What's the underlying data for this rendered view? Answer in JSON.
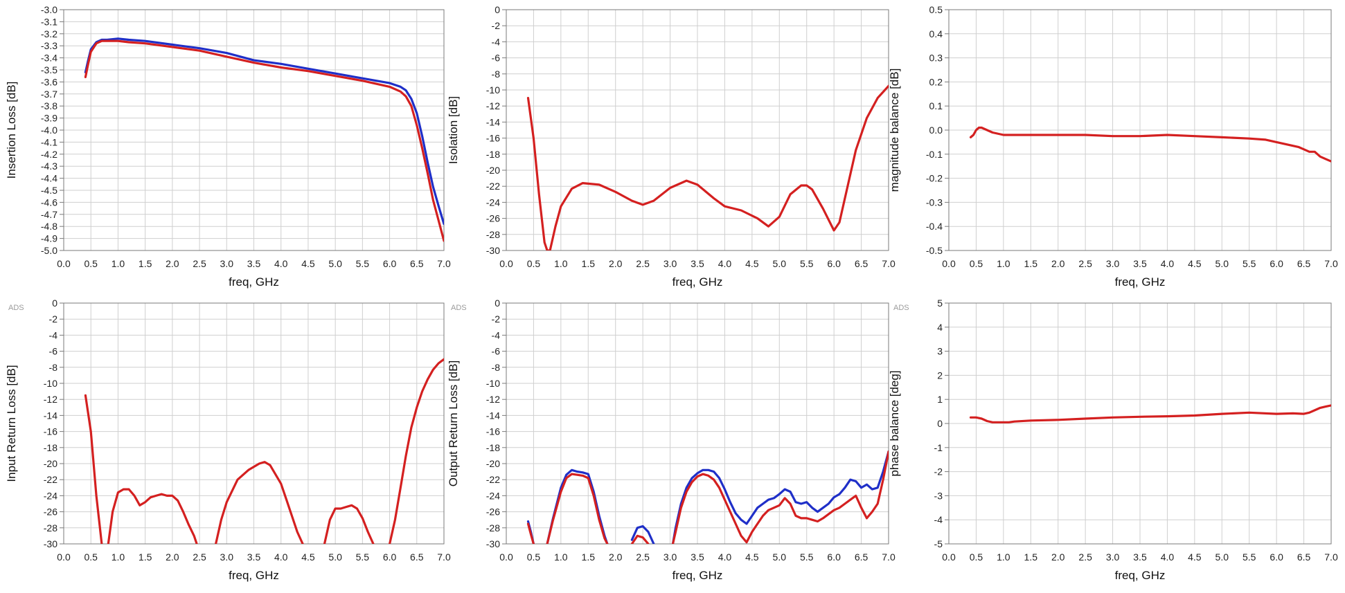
{
  "ads_label": "ADS",
  "colors": {
    "red": "#d42020",
    "blue": "#1f2fc8",
    "red_label": "#cc2222",
    "black_label": "#111111"
  },
  "chart_data": [
    {
      "type": "line",
      "xlabel": "freq, GHz",
      "xlabel_color": "#111111",
      "ylabel": "Insertion Loss [dB]",
      "xlim": [
        0,
        7.0
      ],
      "xstep": 0.5,
      "ylim": [
        -5.0,
        -3.0
      ],
      "ystep": 0.1,
      "ydecimals": 1,
      "xticks": [
        "0.0",
        "0.5",
        "1.0",
        "1.5",
        "2.0",
        "2.5",
        "3.0",
        "3.5",
        "4.0",
        "4.5",
        "5.0",
        "5.5",
        "6.0",
        "6.5",
        "7.0"
      ],
      "yticks": [
        "-3.0",
        "-3.1",
        "-3.2",
        "-3.3",
        "-3.4",
        "-3.5",
        "-3.6",
        "-3.7",
        "-3.8",
        "-3.9",
        "-4.0",
        "-4.1",
        "-4.2",
        "-4.3",
        "-4.4",
        "-4.5",
        "-4.6",
        "-4.7",
        "-4.8",
        "-4.9",
        "-5.0"
      ],
      "show_ads": false,
      "series": [
        {
          "color": "#1f2fc8",
          "x": [
            0.4,
            0.45,
            0.5,
            0.6,
            0.7,
            0.8,
            1.0,
            1.2,
            1.5,
            2.0,
            2.5,
            3.0,
            3.5,
            4.0,
            4.5,
            5.0,
            5.5,
            6.0,
            6.2,
            6.3,
            6.4,
            6.5,
            6.6,
            6.7,
            6.8,
            6.9,
            7.0
          ],
          "y": [
            -3.52,
            -3.42,
            -3.33,
            -3.27,
            -3.25,
            -3.25,
            -3.24,
            -3.25,
            -3.26,
            -3.29,
            -3.32,
            -3.36,
            -3.42,
            -3.45,
            -3.49,
            -3.53,
            -3.57,
            -3.61,
            -3.64,
            -3.67,
            -3.74,
            -3.86,
            -4.05,
            -4.27,
            -4.47,
            -4.63,
            -4.78
          ]
        },
        {
          "color": "#d42020",
          "x": [
            0.4,
            0.45,
            0.5,
            0.6,
            0.7,
            0.8,
            1.0,
            1.2,
            1.5,
            2.0,
            2.5,
            3.0,
            3.5,
            4.0,
            4.5,
            5.0,
            5.5,
            6.0,
            6.2,
            6.3,
            6.4,
            6.5,
            6.6,
            6.7,
            6.8,
            6.9,
            7.0
          ],
          "y": [
            -3.56,
            -3.45,
            -3.35,
            -3.28,
            -3.26,
            -3.26,
            -3.26,
            -3.27,
            -3.28,
            -3.31,
            -3.34,
            -3.39,
            -3.44,
            -3.48,
            -3.51,
            -3.55,
            -3.59,
            -3.64,
            -3.68,
            -3.72,
            -3.8,
            -3.96,
            -4.15,
            -4.36,
            -4.58,
            -4.75,
            -4.92
          ]
        }
      ]
    },
    {
      "type": "line",
      "xlabel": "freq, GHz",
      "xlabel_color": "#cc2222",
      "ylabel": "Isolation [dB]",
      "xlim": [
        0,
        7.0
      ],
      "xstep": 0.5,
      "ylim": [
        -30,
        0
      ],
      "ystep": 2,
      "ydecimals": 0,
      "xticks": [
        "0.0",
        "0.5",
        "1.0",
        "1.5",
        "2.0",
        "2.5",
        "3.0",
        "3.5",
        "4.0",
        "4.5",
        "5.0",
        "5.5",
        "6.0",
        "6.5",
        "7.0"
      ],
      "yticks": [
        "0",
        "-2",
        "-4",
        "-6",
        "-8",
        "-10",
        "-12",
        "-14",
        "-16",
        "-18",
        "-20",
        "-22",
        "-24",
        "-26",
        "-28",
        "-30"
      ],
      "show_ads": false,
      "series": [
        {
          "color": "#d42020",
          "x": [
            0.4,
            0.5,
            0.6,
            0.7,
            0.75,
            0.8,
            0.9,
            1.0,
            1.2,
            1.4,
            1.7,
            2.0,
            2.3,
            2.5,
            2.7,
            3.0,
            3.3,
            3.5,
            3.8,
            4.0,
            4.3,
            4.6,
            4.8,
            5.0,
            5.2,
            5.4,
            5.5,
            5.6,
            5.8,
            6.0,
            6.1,
            6.2,
            6.4,
            6.6,
            6.8,
            7.0
          ],
          "y": [
            -11,
            -16,
            -23,
            -29,
            -30,
            -30,
            -27,
            -24.5,
            -22.3,
            -21.6,
            -21.8,
            -22.7,
            -23.8,
            -24.3,
            -23.8,
            -22.2,
            -21.3,
            -21.8,
            -23.5,
            -24.5,
            -25,
            -26,
            -27,
            -25.8,
            -23,
            -21.9,
            -21.9,
            -22.4,
            -24.8,
            -27.5,
            -26.5,
            -23.5,
            -17.5,
            -13.5,
            -11,
            -9.5
          ]
        }
      ]
    },
    {
      "type": "line",
      "xlabel": "freq, GHz",
      "xlabel_color": "#cc2222",
      "ylabel": "magnitude balance [dB]",
      "xlim": [
        0,
        7.0
      ],
      "xstep": 0.5,
      "ylim": [
        -0.5,
        0.5
      ],
      "ystep": 0.1,
      "ydecimals": 1,
      "xticks": [
        "0.0",
        "0.5",
        "1.0",
        "1.5",
        "2.0",
        "2.5",
        "3.0",
        "3.5",
        "4.0",
        "4.5",
        "5.0",
        "5.5",
        "6.0",
        "6.5",
        "7.0"
      ],
      "yticks": [
        "0.5",
        "0.4",
        "0.3",
        "0.2",
        "0.1",
        "0.0",
        "-0.1",
        "-0.2",
        "-0.3",
        "-0.4",
        "-0.5"
      ],
      "show_ads": false,
      "series": [
        {
          "color": "#d42020",
          "x": [
            0.4,
            0.45,
            0.5,
            0.55,
            0.6,
            0.7,
            0.8,
            1.0,
            1.5,
            2.0,
            2.5,
            3.0,
            3.5,
            4.0,
            4.5,
            5.0,
            5.5,
            5.8,
            6.0,
            6.2,
            6.4,
            6.5,
            6.6,
            6.7,
            6.8,
            6.9,
            7.0
          ],
          "y": [
            -0.03,
            -0.02,
            0.0,
            0.01,
            0.01,
            0.0,
            -0.01,
            -0.02,
            -0.02,
            -0.02,
            -0.02,
            -0.025,
            -0.025,
            -0.02,
            -0.025,
            -0.03,
            -0.035,
            -0.04,
            -0.05,
            -0.06,
            -0.07,
            -0.08,
            -0.09,
            -0.09,
            -0.11,
            -0.12,
            -0.13
          ]
        }
      ]
    },
    {
      "type": "line",
      "xlabel": "freq, GHz",
      "xlabel_color": "#cc2222",
      "ylabel": "Input Return Loss [dB]",
      "xlim": [
        0,
        7.0
      ],
      "xstep": 0.5,
      "ylim": [
        -30,
        0
      ],
      "ystep": 2,
      "ydecimals": 0,
      "xticks": [
        "0.0",
        "0.5",
        "1.0",
        "1.5",
        "2.0",
        "2.5",
        "3.0",
        "3.5",
        "4.0",
        "4.5",
        "5.0",
        "5.5",
        "6.0",
        "6.5",
        "7.0"
      ],
      "yticks": [
        "0",
        "-2",
        "-4",
        "-6",
        "-8",
        "-10",
        "-12",
        "-14",
        "-16",
        "-18",
        "-20",
        "-22",
        "-24",
        "-26",
        "-28",
        "-30"
      ],
      "show_ads": true,
      "series": [
        {
          "color": "#d42020",
          "x": [
            0.4,
            0.5,
            0.6,
            0.7
          ],
          "y": [
            -11.5,
            -16,
            -24,
            -30
          ]
        },
        {
          "color": "#d42020",
          "x": [
            0.82,
            0.9,
            1.0,
            1.1,
            1.2,
            1.3,
            1.4,
            1.5,
            1.6,
            1.7,
            1.8,
            1.9,
            2.0,
            2.1,
            2.2,
            2.3,
            2.4,
            2.45
          ],
          "y": [
            -30,
            -26,
            -23.6,
            -23.2,
            -23.2,
            -24,
            -25.2,
            -24.8,
            -24.2,
            -24,
            -23.8,
            -24,
            -24,
            -24.6,
            -26,
            -27.6,
            -29,
            -30
          ]
        },
        {
          "color": "#d42020",
          "x": [
            2.8,
            2.9,
            3.0,
            3.2,
            3.4,
            3.6,
            3.7,
            3.8,
            4.0,
            4.1,
            4.2,
            4.3,
            4.4
          ],
          "y": [
            -30,
            -27,
            -24.8,
            -22,
            -20.8,
            -20,
            -19.8,
            -20.2,
            -22.5,
            -24.5,
            -26.5,
            -28.5,
            -30
          ]
        },
        {
          "color": "#d42020",
          "x": [
            4.8,
            4.9,
            5.0,
            5.1,
            5.2,
            5.3,
            5.4,
            5.5,
            5.6,
            5.7
          ],
          "y": [
            -30,
            -27,
            -25.6,
            -25.6,
            -25.4,
            -25.2,
            -25.6,
            -26.8,
            -28.5,
            -30
          ]
        },
        {
          "color": "#d42020",
          "x": [
            6.0,
            6.1,
            6.2,
            6.3,
            6.4,
            6.5,
            6.6,
            6.7,
            6.8,
            6.9,
            7.0
          ],
          "y": [
            -30,
            -27,
            -23,
            -19,
            -15.5,
            -13,
            -11,
            -9.5,
            -8.3,
            -7.5,
            -7.0
          ]
        }
      ]
    },
    {
      "type": "line",
      "xlabel": "freq, GHz",
      "xlabel_color": "#111111",
      "ylabel": "Output Return Loss [dB]",
      "xlim": [
        0,
        7.0
      ],
      "xstep": 0.5,
      "ylim": [
        -30,
        0
      ],
      "ystep": 2,
      "ydecimals": 0,
      "xticks": [
        "0.0",
        "0.5",
        "1.0",
        "1.5",
        "2.0",
        "2.5",
        "3.0",
        "3.5",
        "4.0",
        "4.5",
        "5.0",
        "5.5",
        "6.0",
        "6.5",
        "7.0"
      ],
      "yticks": [
        "0",
        "-2",
        "-4",
        "-6",
        "-8",
        "-10",
        "-12",
        "-14",
        "-16",
        "-18",
        "-20",
        "-22",
        "-24",
        "-26",
        "-28",
        "-30"
      ],
      "show_ads": true,
      "series": [
        {
          "color": "#1f2fc8",
          "x": [
            0.4,
            0.45,
            0.5
          ],
          "y": [
            -27.2,
            -28.5,
            -30
          ]
        },
        {
          "color": "#1f2fc8",
          "x": [
            0.75,
            0.85,
            1.0,
            1.1,
            1.2,
            1.3,
            1.4,
            1.5,
            1.6,
            1.7,
            1.8,
            1.85
          ],
          "y": [
            -30,
            -27,
            -23,
            -21.4,
            -20.8,
            -21,
            -21.1,
            -21.3,
            -23.5,
            -26.5,
            -29,
            -30
          ]
        },
        {
          "color": "#1f2fc8",
          "x": [
            2.3,
            2.4,
            2.5,
            2.6,
            2.7
          ],
          "y": [
            -29.5,
            -28,
            -27.8,
            -28.5,
            -30
          ]
        },
        {
          "color": "#1f2fc8",
          "x": [
            3.05,
            3.1,
            3.2,
            3.3,
            3.4,
            3.5,
            3.6,
            3.7,
            3.8,
            3.9,
            4.0,
            4.1,
            4.2,
            4.3,
            4.4,
            4.5,
            4.6,
            4.7,
            4.8,
            4.9,
            5.0,
            5.1,
            5.2,
            5.3,
            5.4,
            5.5,
            5.6,
            5.7,
            5.8,
            5.9,
            6.0,
            6.1,
            6.2,
            6.3,
            6.4,
            6.5,
            6.6,
            6.7,
            6.8,
            6.9,
            7.0
          ],
          "y": [
            -30,
            -28,
            -25,
            -23,
            -21.8,
            -21.2,
            -20.8,
            -20.8,
            -21,
            -21.8,
            -23.2,
            -24.8,
            -26.2,
            -27,
            -27.5,
            -26.5,
            -25.5,
            -25,
            -24.5,
            -24.3,
            -23.8,
            -23.2,
            -23.5,
            -24.8,
            -25,
            -24.8,
            -25.5,
            -26,
            -25.5,
            -25,
            -24.2,
            -23.8,
            -23,
            -22,
            -22.2,
            -23,
            -22.6,
            -23.2,
            -23,
            -21,
            -18.5
          ]
        },
        {
          "color": "#d42020",
          "x": [
            0.4,
            0.45,
            0.5
          ],
          "y": [
            -27.5,
            -28.8,
            -30
          ]
        },
        {
          "color": "#d42020",
          "x": [
            0.75,
            0.85,
            1.0,
            1.1,
            1.2,
            1.3,
            1.4,
            1.5,
            1.6,
            1.7,
            1.8,
            1.85
          ],
          "y": [
            -30,
            -27.2,
            -23.5,
            -21.8,
            -21.3,
            -21.4,
            -21.5,
            -21.8,
            -24,
            -27,
            -29.3,
            -30
          ]
        },
        {
          "color": "#d42020",
          "x": [
            2.3,
            2.4,
            2.5,
            2.6
          ],
          "y": [
            -30,
            -29,
            -29.2,
            -30
          ]
        },
        {
          "color": "#d42020",
          "x": [
            3.05,
            3.1,
            3.2,
            3.3,
            3.4,
            3.5,
            3.6,
            3.7,
            3.8,
            3.9,
            4.0,
            4.1,
            4.2,
            4.3,
            4.4,
            4.5,
            4.6,
            4.7,
            4.8,
            4.9,
            5.0,
            5.1,
            5.2,
            5.3,
            5.4,
            5.5,
            5.6,
            5.7,
            5.8,
            5.9,
            6.0,
            6.1,
            6.2,
            6.3,
            6.4,
            6.5,
            6.6,
            6.7,
            6.8,
            6.9,
            7.0
          ],
          "y": [
            -30,
            -28.5,
            -25.5,
            -23.5,
            -22.3,
            -21.6,
            -21.3,
            -21.5,
            -22,
            -23,
            -24.5,
            -26,
            -27.5,
            -29,
            -29.8,
            -28.5,
            -27.5,
            -26.5,
            -25.8,
            -25.5,
            -25.2,
            -24.3,
            -25,
            -26.5,
            -26.8,
            -26.8,
            -27,
            -27.2,
            -26.8,
            -26.3,
            -25.8,
            -25.5,
            -25,
            -24.5,
            -24,
            -25.5,
            -26.8,
            -26,
            -25,
            -22,
            -18.5
          ]
        }
      ]
    },
    {
      "type": "line",
      "xlabel": "freq, GHz",
      "xlabel_color": "#cc2222",
      "ylabel": "phase balance [deg]",
      "xlim": [
        0,
        7.0
      ],
      "xstep": 0.5,
      "ylim": [
        -5,
        5
      ],
      "ystep": 1,
      "ydecimals": 0,
      "xticks": [
        "0.0",
        "0.5",
        "1.0",
        "1.5",
        "2.0",
        "2.5",
        "3.0",
        "3.5",
        "4.0",
        "4.5",
        "5.0",
        "5.5",
        "6.0",
        "6.5",
        "7.0"
      ],
      "yticks": [
        "5",
        "4",
        "3",
        "2",
        "1",
        "0",
        "-1",
        "-2",
        "-3",
        "-4",
        "-5"
      ],
      "show_ads": true,
      "series": [
        {
          "color": "#d42020",
          "x": [
            0.4,
            0.5,
            0.6,
            0.7,
            0.8,
            0.9,
            1.0,
            1.1,
            1.2,
            1.5,
            2.0,
            2.5,
            3.0,
            3.5,
            4.0,
            4.5,
            5.0,
            5.5,
            6.0,
            6.3,
            6.5,
            6.6,
            6.7,
            6.8,
            6.9,
            7.0
          ],
          "y": [
            0.25,
            0.25,
            0.2,
            0.1,
            0.05,
            0.05,
            0.05,
            0.05,
            0.08,
            0.12,
            0.15,
            0.2,
            0.25,
            0.28,
            0.3,
            0.33,
            0.4,
            0.45,
            0.4,
            0.42,
            0.4,
            0.45,
            0.55,
            0.65,
            0.7,
            0.75
          ]
        }
      ]
    }
  ]
}
